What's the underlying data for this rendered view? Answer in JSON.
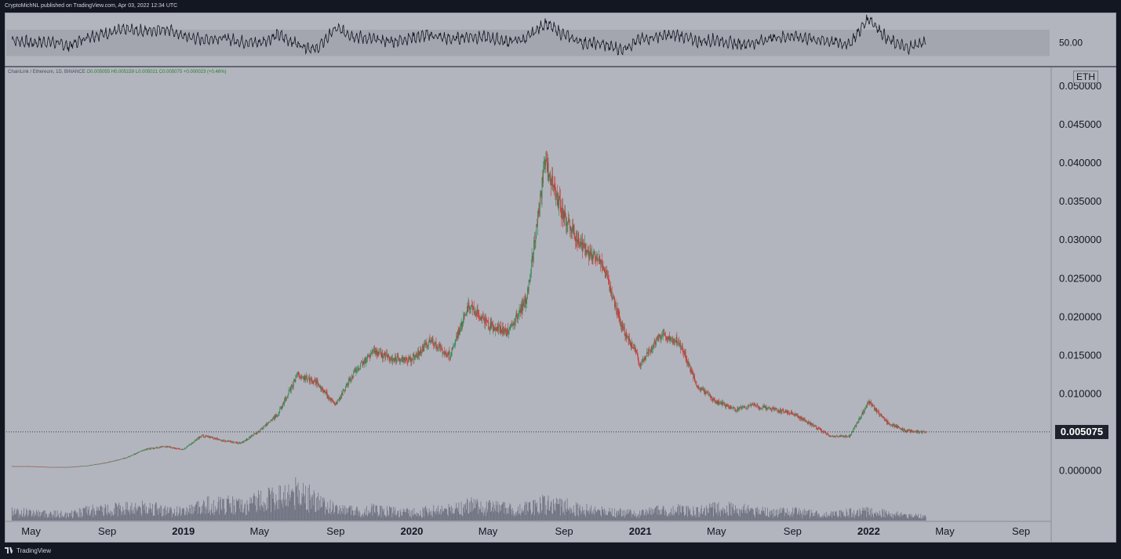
{
  "header": {
    "publisher": "CryptoMichNL published on TradingView.com, Apr 03, 2022 12:34 UTC"
  },
  "footer": {
    "brand": "TradingView"
  },
  "legend": {
    "symbol": "ChainLink / Ethereum, 1D, BINANCE",
    "ohlc": "O0.005055  H0.005159  L0.005021  C0.005075  +0.000023 (+0.46%)"
  },
  "currency": "ETH",
  "last_price": "0.005075",
  "colors": {
    "background": "#b2b5be",
    "up": "#26a69a",
    "down": "#ef5350",
    "candle_up": "#2e8b57",
    "candle_down": "#d32f2f",
    "volume": "#6f7280",
    "rsi_line": "#131722",
    "rsi_band": "#a3a6af",
    "frame": "#131722"
  },
  "chart_data": [
    {
      "type": "line",
      "title": "",
      "level_labels": [
        "50.00"
      ],
      "rsi_band": [
        30,
        70
      ],
      "ylim": [
        15,
        95
      ],
      "description_values_note": "",
      "series": [
        {
          "x": [
            "2018-04",
            "2018-05",
            "2018-06",
            "2018-07",
            "2018-08",
            "2018-09",
            "2018-10",
            "2018-11",
            "2018-12",
            "2019-01",
            "2019-02",
            "2019-03",
            "2019-04",
            "2019-05",
            "2019-06",
            "2019-07",
            "2019-08",
            "2019-09",
            "2019-10",
            "2019-11",
            "2019-12",
            "2020-01",
            "2020-02",
            "2020-03",
            "2020-04",
            "2020-05",
            "2020-06",
            "2020-07",
            "2020-08",
            "2020-09",
            "2020-10",
            "2020-11",
            "2020-12",
            "2021-01",
            "2021-02",
            "2021-03",
            "2021-04",
            "2021-05",
            "2021-06",
            "2021-07",
            "2021-08",
            "2021-09",
            "2021-10",
            "2021-11",
            "2021-12",
            "2022-01",
            "2022-02",
            "2022-03",
            "2022-04"
          ],
          "values": [
            55,
            50,
            52,
            45,
            60,
            65,
            70,
            68,
            72,
            60,
            55,
            58,
            52,
            50,
            62,
            48,
            40,
            72,
            60,
            55,
            52,
            58,
            62,
            55,
            60,
            58,
            52,
            56,
            80,
            62,
            50,
            48,
            40,
            55,
            60,
            62,
            52,
            55,
            48,
            50,
            58,
            60,
            56,
            52,
            48,
            88,
            55,
            42,
            52
          ]
        }
      ]
    },
    {
      "type": "candlestick",
      "title": "",
      "ylabel": "ETH",
      "y_ticks": [
        "0.050000",
        "0.045000",
        "0.040000",
        "0.035000",
        "0.030000",
        "0.025000",
        "0.020000",
        "0.015000",
        "0.010000",
        "0.005075",
        "0.000000"
      ],
      "ylim": [
        -0.004,
        0.051
      ],
      "x_ticks": [
        "May",
        "Sep",
        "2019",
        "May",
        "Sep",
        "2020",
        "May",
        "Sep",
        "2021",
        "May",
        "Sep",
        "2022",
        "May",
        "Sep"
      ],
      "x_tick_dates": [
        "2018-05",
        "2018-09",
        "2019-01",
        "2019-05",
        "2019-09",
        "2020-01",
        "2020-05",
        "2020-09",
        "2021-01",
        "2021-05",
        "2021-09",
        "2022-01",
        "2022-05",
        "2022-09"
      ],
      "last_value": 0.005075,
      "series": [
        {
          "name": "",
          "x": [
            "2018-04",
            "2018-05",
            "2018-06",
            "2018-07",
            "2018-08",
            "2018-09",
            "2018-10",
            "2018-11",
            "2018-12",
            "2019-01",
            "2019-02",
            "2019-03",
            "2019-04",
            "2019-05",
            "2019-06",
            "2019-07",
            "2019-08",
            "2019-09",
            "2019-10",
            "2019-11",
            "2019-12",
            "2020-01",
            "2020-02",
            "2020-03",
            "2020-04",
            "2020-05",
            "2020-06",
            "2020-07",
            "2020-08",
            "2020-09",
            "2020-10",
            "2020-11",
            "2020-12",
            "2021-01",
            "2021-02",
            "2021-03",
            "2021-04",
            "2021-05",
            "2021-06",
            "2021-07",
            "2021-08",
            "2021-09",
            "2021-10",
            "2021-11",
            "2021-12",
            "2022-01",
            "2022-02",
            "2022-03",
            "2022-04"
          ],
          "values": [
            0.0006,
            0.0006,
            0.0005,
            0.0005,
            0.0007,
            0.0011,
            0.0017,
            0.0028,
            0.0032,
            0.0028,
            0.0046,
            0.004,
            0.0036,
            0.0052,
            0.0075,
            0.0125,
            0.0115,
            0.0085,
            0.013,
            0.0155,
            0.0145,
            0.0145,
            0.017,
            0.015,
            0.0215,
            0.019,
            0.018,
            0.022,
            0.04,
            0.033,
            0.029,
            0.027,
            0.019,
            0.014,
            0.0175,
            0.017,
            0.011,
            0.009,
            0.008,
            0.0085,
            0.008,
            0.0075,
            0.006,
            0.0045,
            0.0045,
            0.009,
            0.0062,
            0.0052,
            0.005075
          ]
        }
      ],
      "volume": [
        18,
        16,
        14,
        12,
        20,
        22,
        25,
        28,
        20,
        18,
        30,
        35,
        28,
        40,
        45,
        60,
        38,
        22,
        20,
        24,
        18,
        16,
        20,
        22,
        30,
        28,
        24,
        26,
        34,
        30,
        22,
        18,
        16,
        14,
        20,
        22,
        18,
        26,
        24,
        20,
        16,
        18,
        14,
        12,
        16,
        18,
        14,
        10,
        8
      ]
    }
  ]
}
